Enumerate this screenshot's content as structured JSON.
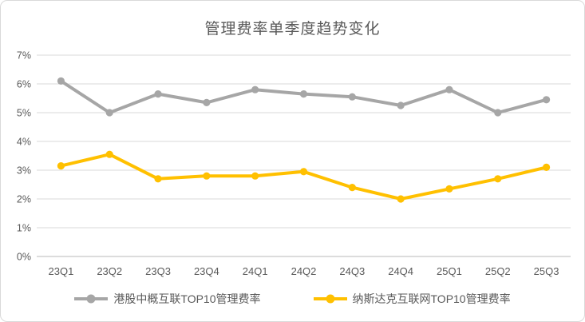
{
  "chart_data": {
    "type": "line",
    "title": "管理费率单季度趋势变化",
    "categories": [
      "23Q1",
      "23Q2",
      "23Q3",
      "23Q4",
      "24Q1",
      "24Q2",
      "24Q3",
      "24Q4",
      "25Q1",
      "25Q2",
      "25Q3"
    ],
    "series": [
      {
        "name": "港股中概互联TOP10管理费率",
        "color": "#A6A6A6",
        "values": [
          6.1,
          5.0,
          5.65,
          5.35,
          5.8,
          5.65,
          5.55,
          5.25,
          5.8,
          5.0,
          5.45
        ]
      },
      {
        "name": "纳斯达克互联网TOP10管理费率",
        "color": "#FFC000",
        "values": [
          3.15,
          3.55,
          2.7,
          2.8,
          2.8,
          2.95,
          2.4,
          2.0,
          2.35,
          2.7,
          3.1
        ]
      }
    ],
    "xlabel": "",
    "ylabel": "",
    "ylim": [
      0,
      7
    ],
    "ytick_step": 1,
    "ytick_labels": [
      "0%",
      "1%",
      "2%",
      "3%",
      "4%",
      "5%",
      "6%",
      "7%"
    ],
    "grid": "horizontal-only",
    "legend_position": "bottom",
    "marker": "circle",
    "colors": {
      "text": "#595959",
      "gridline": "#D9D9D9",
      "axis_line": "#D0D0D0",
      "background": "#FFFFFF",
      "card_border": "#D9D9D9"
    }
  }
}
